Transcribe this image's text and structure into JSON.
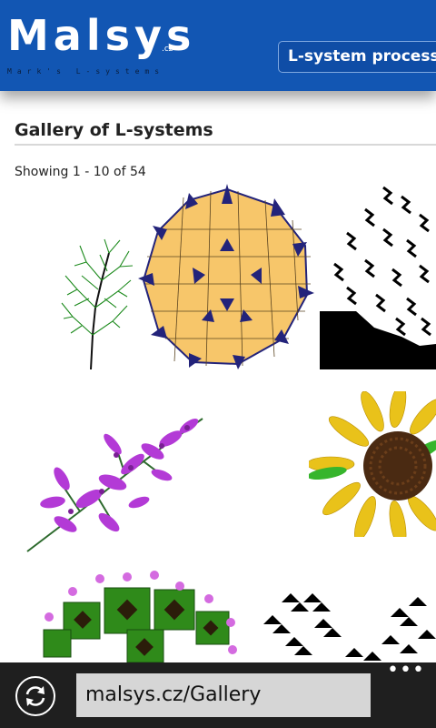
{
  "header": {
    "logo": "Malsys",
    "logo_tld": ".cz",
    "logo_subtitle": "Mark's L-systems",
    "nav_button": "L-system processor"
  },
  "page": {
    "title": "Gallery of L-systems",
    "showing_prefix": "Showing",
    "showing_range": "1 - 10",
    "showing_of": "of",
    "showing_total": "54"
  },
  "gallery": {
    "items": [
      {
        "name": "tree-thumbnail"
      },
      {
        "name": "penrose-tiling-thumbnail"
      },
      {
        "name": "gosper-curve-thumbnail"
      },
      {
        "name": "lavender-thumbnail"
      },
      {
        "name": "sunflower-thumbnail"
      },
      {
        "name": "blooming-tree-thumbnail"
      },
      {
        "name": "triangle-pattern-thumbnail"
      }
    ]
  },
  "appbar": {
    "url": "malsys.cz/Gallery",
    "refresh_icon": "refresh-icon",
    "more_icon": "more-dots-icon"
  },
  "colors": {
    "header_blue": "#1256b3",
    "appbar_bg": "#1f1f1f",
    "url_bg": "#d6d6d6",
    "penrose_fill": "#f7c66a",
    "penrose_dark": "#23237a"
  }
}
